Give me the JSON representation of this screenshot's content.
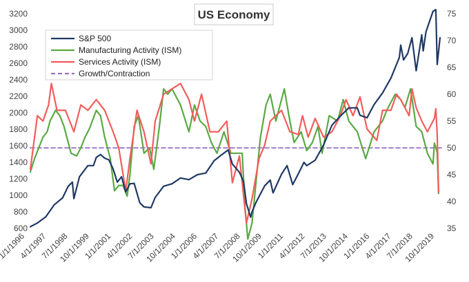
{
  "chart_data": {
    "type": "line",
    "title": "US Economy",
    "xlabel": "",
    "ylabel": "",
    "x_tick_labels": [
      "1/1/1996",
      "4/1/1997",
      "7/1/1998",
      "10/1/1999",
      "1/1/2001",
      "4/1/2002",
      "7/1/2003",
      "10/1/2004",
      "1/1/2006",
      "4/1/2007",
      "7/1/2008",
      "10/1/2009",
      "1/1/2011",
      "4/1/2012",
      "7/1/2013",
      "10/1/2014",
      "1/1/2016",
      "4/1/2017",
      "7/1/2018",
      "10/1/2019"
    ],
    "x_range": [
      "1996-01",
      "2020-06"
    ],
    "y_left": {
      "min": 600,
      "max": 3200,
      "ticks": [
        600,
        800,
        1000,
        1200,
        1400,
        1600,
        1800,
        2000,
        2200,
        2400,
        2600,
        2800,
        3000,
        3200
      ]
    },
    "y_right": {
      "min": 35,
      "max": 75,
      "ticks": [
        35,
        40,
        45,
        50,
        55,
        60,
        65,
        70,
        75
      ]
    },
    "legend_position": "top-left",
    "grid": false,
    "series": [
      {
        "name": "S&P 500",
        "axis": "left",
        "color": "#1f3864",
        "points": [
          [
            "1996-01",
            620
          ],
          [
            "1996-06",
            665
          ],
          [
            "1996-12",
            740
          ],
          [
            "1997-06",
            885
          ],
          [
            "1997-12",
            970
          ],
          [
            "1998-04",
            1110
          ],
          [
            "1998-07",
            1160
          ],
          [
            "1998-08",
            960
          ],
          [
            "1998-12",
            1225
          ],
          [
            "1999-06",
            1360
          ],
          [
            "1999-10",
            1360
          ],
          [
            "1999-12",
            1460
          ],
          [
            "2000-03",
            1495
          ],
          [
            "2000-06",
            1450
          ],
          [
            "2000-09",
            1430
          ],
          [
            "2000-12",
            1320
          ],
          [
            "2001-03",
            1160
          ],
          [
            "2001-06",
            1225
          ],
          [
            "2001-09",
            1040
          ],
          [
            "2001-12",
            1140
          ],
          [
            "2002-03",
            1145
          ],
          [
            "2002-07",
            910
          ],
          [
            "2002-10",
            860
          ],
          [
            "2003-03",
            850
          ],
          [
            "2003-06",
            975
          ],
          [
            "2003-12",
            1110
          ],
          [
            "2004-06",
            1140
          ],
          [
            "2004-12",
            1210
          ],
          [
            "2005-06",
            1190
          ],
          [
            "2005-12",
            1250
          ],
          [
            "2006-06",
            1270
          ],
          [
            "2006-12",
            1420
          ],
          [
            "2007-06",
            1500
          ],
          [
            "2007-10",
            1550
          ],
          [
            "2008-01",
            1380
          ],
          [
            "2008-06",
            1280
          ],
          [
            "2008-09",
            1165
          ],
          [
            "2008-11",
            900
          ],
          [
            "2009-02",
            735
          ],
          [
            "2009-03",
            800
          ],
          [
            "2009-06",
            920
          ],
          [
            "2009-12",
            1115
          ],
          [
            "2010-04",
            1185
          ],
          [
            "2010-06",
            1030
          ],
          [
            "2010-12",
            1255
          ],
          [
            "2011-04",
            1360
          ],
          [
            "2011-08",
            1130
          ],
          [
            "2011-12",
            1260
          ],
          [
            "2012-04",
            1400
          ],
          [
            "2012-06",
            1360
          ],
          [
            "2012-12",
            1425
          ],
          [
            "2013-06",
            1610
          ],
          [
            "2013-12",
            1850
          ],
          [
            "2014-06",
            1960
          ],
          [
            "2014-12",
            2060
          ],
          [
            "2015-06",
            2060
          ],
          [
            "2015-08",
            1970
          ],
          [
            "2016-01",
            1940
          ],
          [
            "2016-06",
            2100
          ],
          [
            "2016-12",
            2240
          ],
          [
            "2017-06",
            2420
          ],
          [
            "2017-12",
            2670
          ],
          [
            "2018-01",
            2820
          ],
          [
            "2018-03",
            2640
          ],
          [
            "2018-06",
            2720
          ],
          [
            "2018-09",
            2910
          ],
          [
            "2018-12",
            2510
          ],
          [
            "2019-04",
            2945
          ],
          [
            "2019-05",
            2750
          ],
          [
            "2019-07",
            2980
          ],
          [
            "2019-12",
            3230
          ],
          [
            "2020-02",
            3250
          ],
          [
            "2020-03",
            2585
          ],
          [
            "2020-05",
            2910
          ]
        ]
      },
      {
        "name": "Manufacturing Activity (ISM)",
        "axis": "right",
        "color": "#5aa844",
        "points": [
          [
            "1996-01",
            45.5
          ],
          [
            "1996-04",
            48
          ],
          [
            "1996-10",
            52
          ],
          [
            "1997-01",
            53
          ],
          [
            "1997-03",
            55
          ],
          [
            "1997-07",
            57
          ],
          [
            "1997-10",
            56
          ],
          [
            "1998-01",
            54
          ],
          [
            "1998-06",
            49
          ],
          [
            "1998-10",
            48.5
          ],
          [
            "1999-01",
            50
          ],
          [
            "1999-04",
            52
          ],
          [
            "1999-07",
            53.5
          ],
          [
            "1999-12",
            57
          ],
          [
            "2000-03",
            56
          ],
          [
            "2000-06",
            52
          ],
          [
            "2000-10",
            48
          ],
          [
            "2001-01",
            42
          ],
          [
            "2001-04",
            43
          ],
          [
            "2001-07",
            43
          ],
          [
            "2001-10",
            41
          ],
          [
            "2001-12",
            45
          ],
          [
            "2002-03",
            54
          ],
          [
            "2002-06",
            56
          ],
          [
            "2002-10",
            49
          ],
          [
            "2003-02",
            50
          ],
          [
            "2003-05",
            46
          ],
          [
            "2003-09",
            54
          ],
          [
            "2003-12",
            61
          ],
          [
            "2004-03",
            60
          ],
          [
            "2004-06",
            61
          ],
          [
            "2004-12",
            58
          ],
          [
            "2005-06",
            53
          ],
          [
            "2005-10",
            58
          ],
          [
            "2006-02",
            55
          ],
          [
            "2006-06",
            54
          ],
          [
            "2006-10",
            51
          ],
          [
            "2007-02",
            49
          ],
          [
            "2007-07",
            53
          ],
          [
            "2007-12",
            49
          ],
          [
            "2008-04",
            49
          ],
          [
            "2008-08",
            49
          ],
          [
            "2008-10",
            39
          ],
          [
            "2008-12",
            33
          ],
          [
            "2009-03",
            36
          ],
          [
            "2009-06",
            44
          ],
          [
            "2009-09",
            52
          ],
          [
            "2010-01",
            58
          ],
          [
            "2010-04",
            60
          ],
          [
            "2010-08",
            55
          ],
          [
            "2011-02",
            61
          ],
          [
            "2011-06",
            55
          ],
          [
            "2011-09",
            51
          ],
          [
            "2012-02",
            53
          ],
          [
            "2012-06",
            49.5
          ],
          [
            "2012-10",
            51
          ],
          [
            "2013-02",
            54
          ],
          [
            "2013-05",
            49
          ],
          [
            "2013-10",
            56
          ],
          [
            "2014-04",
            55
          ],
          [
            "2014-08",
            59
          ],
          [
            "2014-12",
            55
          ],
          [
            "2015-06",
            53
          ],
          [
            "2015-12",
            48
          ],
          [
            "2016-06",
            53
          ],
          [
            "2016-12",
            55
          ],
          [
            "2017-03",
            57
          ],
          [
            "2017-09",
            60
          ],
          [
            "2018-01",
            59
          ],
          [
            "2018-04",
            57.5
          ],
          [
            "2018-08",
            61
          ],
          [
            "2018-12",
            54
          ],
          [
            "2019-04",
            53
          ],
          [
            "2019-08",
            49
          ],
          [
            "2019-12",
            47
          ],
          [
            "2020-01",
            50.9
          ],
          [
            "2020-02",
            50.1
          ],
          [
            "2020-03",
            49.1
          ],
          [
            "2020-04",
            41.5
          ]
        ]
      },
      {
        "name": "Services Activity (ISM)",
        "axis": "right",
        "color": "#f25c5c",
        "points": [
          [
            "1996-01",
            46
          ],
          [
            "1996-06",
            56
          ],
          [
            "1996-10",
            55
          ],
          [
            "1997-02",
            58
          ],
          [
            "1997-04",
            62
          ],
          [
            "1997-08",
            57
          ],
          [
            "1998-02",
            57
          ],
          [
            "1998-08",
            53
          ],
          [
            "1999-01",
            58
          ],
          [
            "1999-06",
            57
          ],
          [
            "1999-12",
            59
          ],
          [
            "2000-06",
            57
          ],
          [
            "2000-12",
            53
          ],
          [
            "2001-04",
            50
          ],
          [
            "2001-09",
            42
          ],
          [
            "2001-12",
            48
          ],
          [
            "2002-05",
            57
          ],
          [
            "2002-10",
            53
          ],
          [
            "2003-03",
            47
          ],
          [
            "2003-06",
            55
          ],
          [
            "2003-12",
            60
          ],
          [
            "2004-06",
            61
          ],
          [
            "2004-12",
            62
          ],
          [
            "2005-06",
            59
          ],
          [
            "2005-10",
            55
          ],
          [
            "2006-03",
            60
          ],
          [
            "2006-09",
            53
          ],
          [
            "2007-03",
            53
          ],
          [
            "2007-09",
            55
          ],
          [
            "2008-01",
            43.5
          ],
          [
            "2008-06",
            48.5
          ],
          [
            "2008-11",
            36
          ],
          [
            "2009-03",
            40.5
          ],
          [
            "2009-08",
            48
          ],
          [
            "2009-12",
            50.5
          ],
          [
            "2010-04",
            55
          ],
          [
            "2010-12",
            57
          ],
          [
            "2011-06",
            53
          ],
          [
            "2011-12",
            52.5
          ],
          [
            "2012-03",
            56
          ],
          [
            "2012-07",
            52
          ],
          [
            "2012-12",
            55.5
          ],
          [
            "2013-06",
            52
          ],
          [
            "2013-12",
            53
          ],
          [
            "2014-06",
            56
          ],
          [
            "2014-10",
            59
          ],
          [
            "2015-03",
            56
          ],
          [
            "2015-08",
            59.5
          ],
          [
            "2016-01",
            53.5
          ],
          [
            "2016-08",
            51.4
          ],
          [
            "2016-12",
            57
          ],
          [
            "2017-06",
            57
          ],
          [
            "2017-10",
            60
          ],
          [
            "2018-01",
            59
          ],
          [
            "2018-07",
            56
          ],
          [
            "2018-09",
            61
          ],
          [
            "2018-12",
            57.5
          ],
          [
            "2019-04",
            55
          ],
          [
            "2019-08",
            53
          ],
          [
            "2019-12",
            55
          ],
          [
            "2020-01",
            55.5
          ],
          [
            "2020-02",
            57.3
          ],
          [
            "2020-03",
            52.5
          ],
          [
            "2020-04",
            41.8
          ]
        ]
      },
      {
        "name": "Growth/Contraction",
        "axis": "right",
        "color": "#9b6fc6",
        "dashed": true,
        "points": [
          [
            "1996-01",
            50
          ],
          [
            "2020-06",
            50
          ]
        ]
      }
    ]
  }
}
